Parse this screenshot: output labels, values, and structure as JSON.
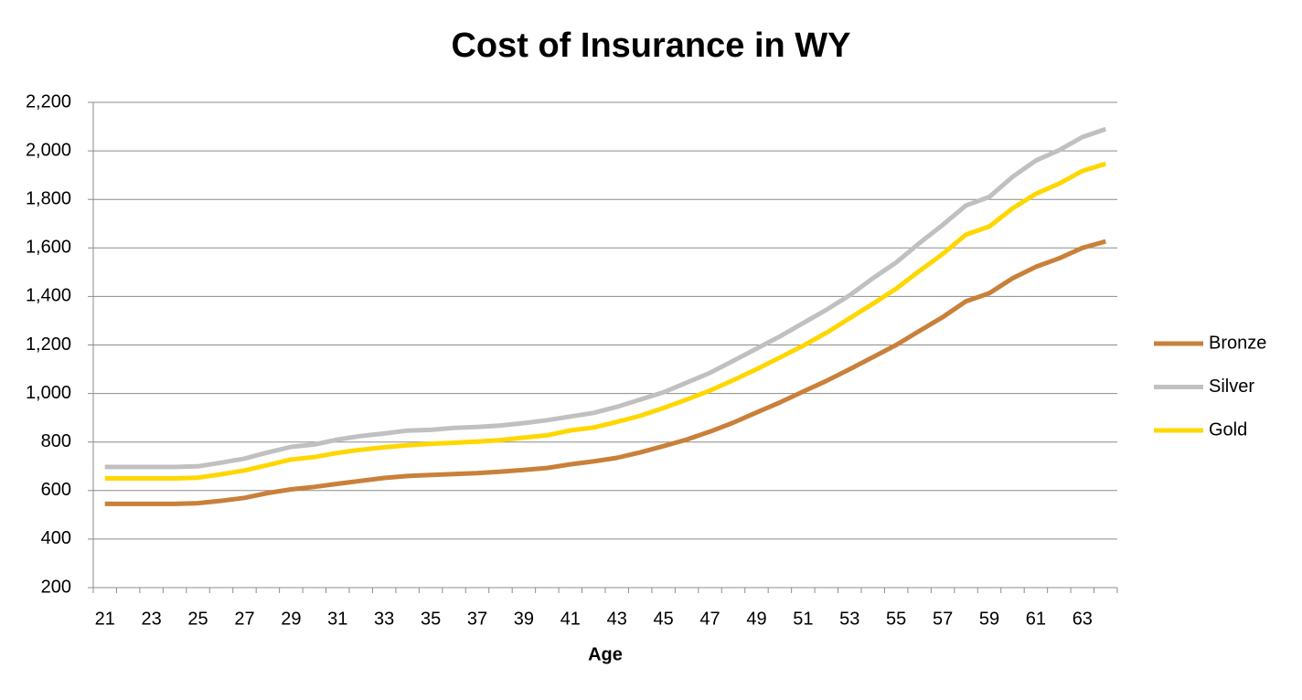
{
  "chart_data": {
    "type": "line",
    "title": "Cost of Insurance in WY",
    "x_label": "Age",
    "categories": [
      "21",
      null,
      "23",
      null,
      "25",
      null,
      "27",
      null,
      "29",
      null,
      "31",
      null,
      "33",
      null,
      "35",
      null,
      "37",
      null,
      "39",
      null,
      "41",
      null,
      "43",
      null,
      "45",
      null,
      "47",
      null,
      "49",
      null,
      "51",
      null,
      "53",
      null,
      "55",
      null,
      "57",
      null,
      "59",
      null,
      "61",
      null,
      "63",
      null
    ],
    "series": [
      {
        "name": "Bronze",
        "color": "#c9803a",
        "values": [
          545,
          545,
          545,
          545,
          548,
          558,
          570,
          590,
          605,
          615,
          628,
          640,
          652,
          660,
          664,
          668,
          672,
          678,
          685,
          693,
          708,
          720,
          735,
          757,
          783,
          810,
          843,
          880,
          922,
          963,
          1008,
          1052,
          1100,
          1150,
          1200,
          1258,
          1315,
          1380,
          1413,
          1475,
          1522,
          1557,
          1600,
          1627
        ]
      },
      {
        "name": "Silver",
        "color": "#c0c0c0",
        "values": [
          697,
          697,
          697,
          697,
          700,
          715,
          732,
          757,
          780,
          790,
          810,
          825,
          835,
          847,
          850,
          858,
          862,
          868,
          878,
          890,
          905,
          920,
          945,
          975,
          1005,
          1045,
          1085,
          1135,
          1185,
          1235,
          1290,
          1345,
          1405,
          1475,
          1540,
          1620,
          1695,
          1775,
          1810,
          1893,
          1960,
          2003,
          2057,
          2090
        ]
      },
      {
        "name": "Gold",
        "color": "#ffd700",
        "values": [
          650,
          650,
          650,
          650,
          653,
          667,
          683,
          705,
          728,
          738,
          755,
          768,
          778,
          787,
          793,
          797,
          802,
          808,
          818,
          828,
          848,
          860,
          883,
          908,
          940,
          975,
          1012,
          1055,
          1100,
          1148,
          1197,
          1250,
          1310,
          1370,
          1432,
          1505,
          1575,
          1655,
          1688,
          1763,
          1823,
          1865,
          1917,
          1947
        ]
      }
    ],
    "ylim": [
      200,
      2200
    ],
    "yticks": [
      200,
      400,
      600,
      800,
      {
        "value": 1000,
        "label": "1,000"
      },
      {
        "value": 1200,
        "label": "1,200"
      },
      {
        "value": 1400,
        "label": "1,400"
      },
      {
        "value": 1600,
        "label": "1,600"
      },
      {
        "value": 1800,
        "label": "1,800"
      },
      {
        "value": 2000,
        "label": "2,000"
      },
      {
        "value": 2200,
        "label": "2,200"
      }
    ],
    "grid": true,
    "legend": "right"
  }
}
